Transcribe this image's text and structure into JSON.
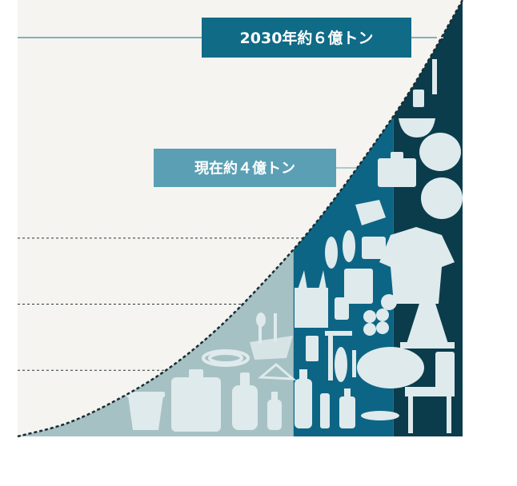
{
  "chart_data": {
    "type": "area",
    "title": "",
    "xlabel": "",
    "ylabel": "",
    "ylim": [
      0,
      6.6
    ],
    "grid": "dashed horizontal",
    "series": [
      {
        "values": [
          0,
          0.2,
          0.55,
          1.0,
          1.6,
          2.35,
          3.2,
          4.2,
          5.3,
          6.6
        ]
      }
    ],
    "bands": [
      {
        "color": "#a6c1c4",
        "until": 0.62
      },
      {
        "color": "#0d6585",
        "until": 0.845
      },
      {
        "color": "#0a3c4c",
        "until": 1.0
      }
    ],
    "annotations": [
      {
        "text": "2030年約６億トン",
        "value": 6,
        "color": "#0f6b86"
      },
      {
        "text": "現在約４億トン",
        "value": 4,
        "color": "#5b9fb4"
      }
    ],
    "colors": {
      "background": "#f5f4f0",
      "curve": "#1b2b2f",
      "icons": "#dfeaec"
    },
    "icons": [
      "bucket-icon",
      "jug-icon",
      "detergent-bottle-icon",
      "small-bottle-icon",
      "hose-icon",
      "net-icon",
      "hanger-icon",
      "spoon-fork-icon",
      "bottle-icon",
      "cup-icon",
      "brush-icon",
      "straw-icon",
      "shopping-bag-icon",
      "food-tray-icon",
      "flip-flops-icon",
      "cd-icon",
      "dish-icon",
      "balls-icon",
      "t-shirt-icon",
      "traffic-cone-icon",
      "chair-icon",
      "fan-icon",
      "suitcase-icon",
      "trash-bag-icon",
      "bowl-icon",
      "cutlery-icon",
      "toy-icon"
    ]
  }
}
